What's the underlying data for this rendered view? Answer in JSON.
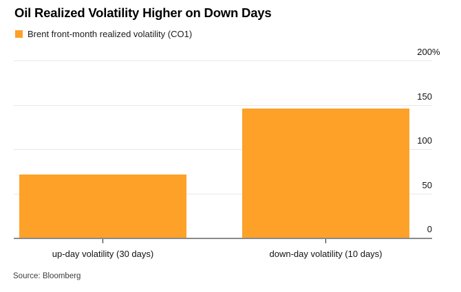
{
  "chart_data": {
    "type": "bar",
    "title": "Oil Realized Volatility Higher on Down Days",
    "legend": [
      "Brent front-month realized volatility (CO1)"
    ],
    "legend_position": "top-left",
    "source": "Source: Bloomberg",
    "categories": [
      "up-day volatility (30 days)",
      "down-day volatility (10 days)"
    ],
    "values": [
      71,
      146
    ],
    "unit": "%",
    "xlabel": "",
    "ylabel": "",
    "ylim": [
      0,
      200
    ],
    "axis_side": "right",
    "grid": "horizontal",
    "y_ticks": [
      {
        "value": 200,
        "label": "200",
        "suffix": "%"
      },
      {
        "value": 150,
        "label": "150",
        "suffix": ""
      },
      {
        "value": 100,
        "label": "100",
        "suffix": ""
      },
      {
        "value": 50,
        "label": "50",
        "suffix": ""
      },
      {
        "value": 0,
        "label": "0",
        "suffix": ""
      }
    ],
    "colors": {
      "bar": "#FDA129",
      "gridline": "#E8E8E8",
      "baseline": "#8A8A8A",
      "tick": "#222222",
      "title_text": "#000000",
      "label_text": "#111111",
      "source_text": "#3D3D3D",
      "background": "#FFFFFF"
    }
  }
}
